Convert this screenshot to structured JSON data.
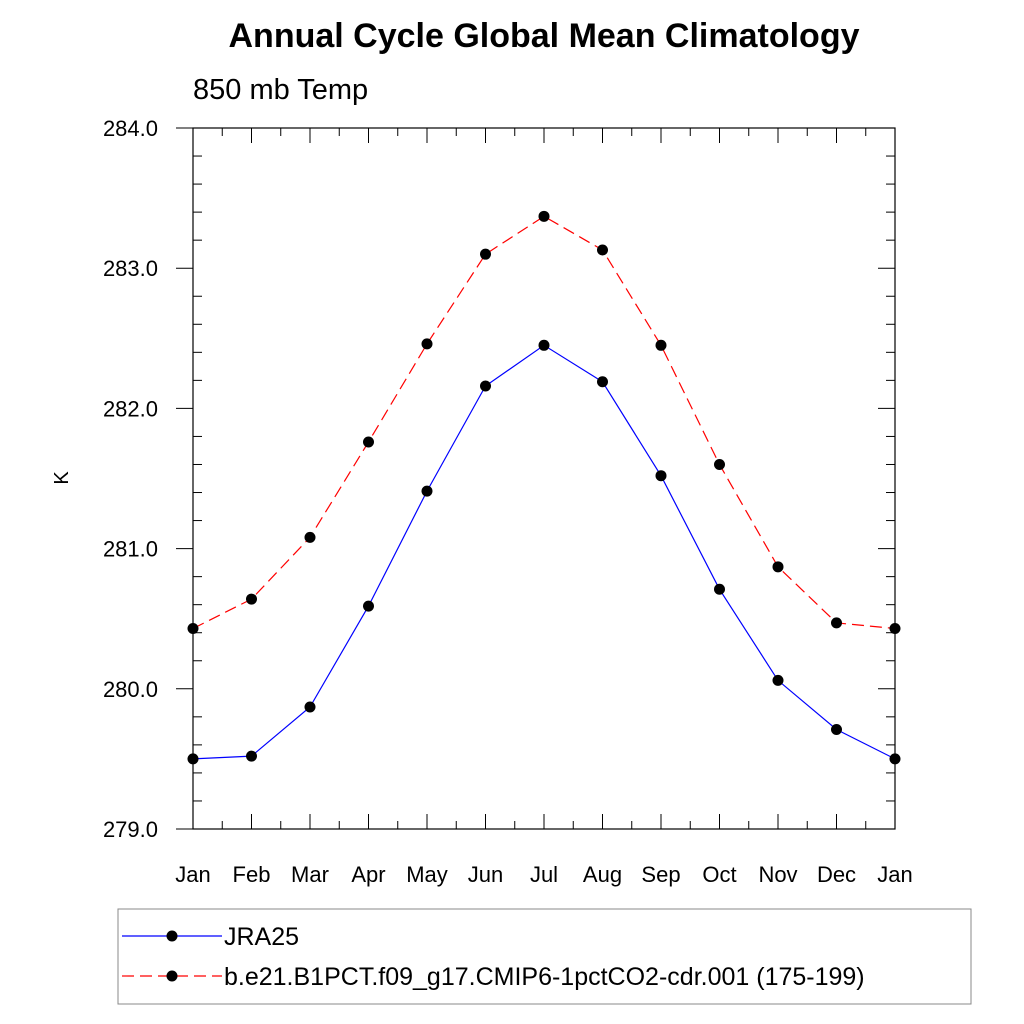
{
  "chart_data": {
    "type": "line",
    "title": "Annual Cycle Global Mean Climatology",
    "subtitle": "850 mb Temp",
    "xlabel": "",
    "ylabel": "K",
    "categories": [
      "Jan",
      "Feb",
      "Mar",
      "Apr",
      "May",
      "Jun",
      "Jul",
      "Aug",
      "Sep",
      "Oct",
      "Nov",
      "Dec",
      "Jan"
    ],
    "ylim": [
      279.0,
      284.0
    ],
    "yticks": [
      279.0,
      280.0,
      281.0,
      282.0,
      283.0,
      284.0
    ],
    "ytick_labels": [
      "279.0",
      "280.0",
      "281.0",
      "282.0",
      "283.0",
      "284.0"
    ],
    "series": [
      {
        "name": "JRA25",
        "color": "#0000ff",
        "line_style": "solid",
        "marker": "filled-circle",
        "values": [
          279.5,
          279.52,
          279.87,
          280.59,
          281.41,
          282.16,
          282.45,
          282.19,
          281.52,
          280.71,
          280.06,
          279.71,
          279.5
        ]
      },
      {
        "name": "b.e21.B1PCT.f09_g17.CMIP6-1pctCO2-cdr.001 (175-199)",
        "color": "#ff0000",
        "line_style": "dashed",
        "marker": "filled-circle",
        "values": [
          280.43,
          280.64,
          281.08,
          281.76,
          282.46,
          283.1,
          283.37,
          283.13,
          282.45,
          281.6,
          280.87,
          280.47,
          280.43
        ]
      }
    ],
    "grid": false,
    "legend_position": "bottom"
  }
}
